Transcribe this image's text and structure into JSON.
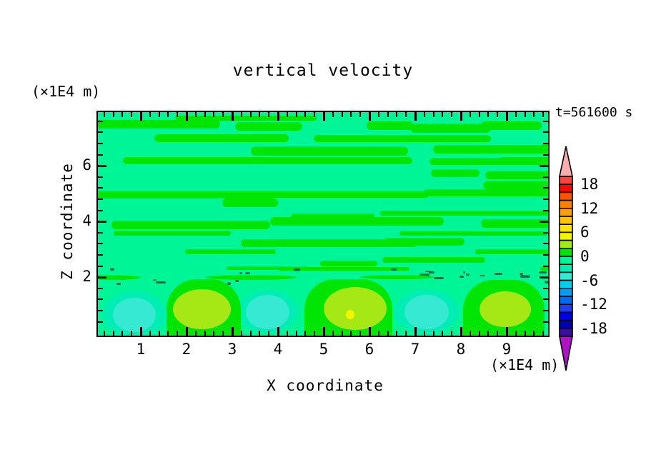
{
  "title": "vertical velocity",
  "time_label": "t=561600 s",
  "axes": {
    "x": {
      "label": "X coordinate",
      "unit_label": "(×1E4 m)",
      "major_ticks": [
        1,
        2,
        3,
        4,
        5,
        6,
        7,
        8,
        9
      ],
      "minor_step": 0.2,
      "min": 0.0625,
      "max": 9.9
    },
    "z": {
      "label": "Z coordinate",
      "unit_label": "(×1E4 m)",
      "major_ticks": [
        2,
        4,
        6
      ],
      "minor_step": 0.4,
      "min": -0.1,
      "max": 7.93
    }
  },
  "colorbar": {
    "step": 2,
    "labels": [
      "18",
      "12",
      "6",
      "0",
      "-6",
      "-12",
      "-18"
    ],
    "label_values": [
      18,
      12,
      6,
      0,
      -6,
      -12,
      -18
    ],
    "label_boundary_indices": [
      1,
      4,
      7,
      10,
      13,
      16,
      19
    ],
    "over_color": "#F8AEB0",
    "under_color": "#AE14C4",
    "segments": [
      {
        "range": [
          18,
          20
        ],
        "color": "#FA4440"
      },
      {
        "range": [
          16,
          18
        ],
        "color": "#F40A00"
      },
      {
        "range": [
          14,
          16
        ],
        "color": "#FA5500"
      },
      {
        "range": [
          12,
          14
        ],
        "color": "#FB8200"
      },
      {
        "range": [
          10,
          12
        ],
        "color": "#FDA000"
      },
      {
        "range": [
          8,
          10
        ],
        "color": "#FFC300"
      },
      {
        "range": [
          6,
          8
        ],
        "color": "#FFE300"
      },
      {
        "range": [
          4,
          6
        ],
        "color": "#F2F500"
      },
      {
        "range": [
          2,
          4
        ],
        "color": "#A6E816"
      },
      {
        "range": [
          0,
          2
        ],
        "color": "#00E504"
      },
      {
        "range": [
          -2,
          0
        ],
        "color": "#00F596"
      },
      {
        "range": [
          -4,
          -2
        ],
        "color": "#00EDB4"
      },
      {
        "range": [
          -6,
          -4
        ],
        "color": "#36E9D2"
      },
      {
        "range": [
          -8,
          -6
        ],
        "color": "#00CFF0"
      },
      {
        "range": [
          -10,
          -8
        ],
        "color": "#009CF5"
      },
      {
        "range": [
          -12,
          -10
        ],
        "color": "#006BF0"
      },
      {
        "range": [
          -14,
          -12
        ],
        "color": "#1E3CF2"
      },
      {
        "range": [
          -16,
          -14
        ],
        "color": "#0000E6"
      },
      {
        "range": [
          -18,
          -16
        ],
        "color": "#0000AC"
      },
      {
        "range": [
          -20,
          -18
        ],
        "color": "#3A0CA0"
      }
    ]
  },
  "chart_data": {
    "type": "heatmap",
    "field": "vertical velocity",
    "title": "vertical velocity",
    "xlabel": "X coordinate",
    "ylabel": "Z coordinate",
    "x_range": [
      0.0625,
      9.9
    ],
    "z_range": [
      -0.1,
      7.93
    ],
    "time_annotation": "t=561600 s",
    "background_level": {
      "range": [
        -2,
        0
      ],
      "color": "#00F596"
    },
    "feature_colors": {
      "halo": "#00EDB4",
      "patch": "#36E9D2",
      "cell": "#00E504",
      "blob": "#A6E816",
      "dot": "#F2F500",
      "streak-link": "#00E504",
      "streak": "#00E504",
      "speck": "#007748"
    },
    "streak_band": {
      "description": "wavy horizontal streaks of 0..2 level over -2..0 background between z=2 and z=7.9",
      "seed": 9,
      "coverage": 0.57,
      "z_top": 7.93,
      "z_bottom": 2.05,
      "speck_count": 26
    },
    "features": [
      {
        "type": "halo",
        "x": 0.86,
        "z": 0.67,
        "rx": 0.69,
        "rz": 0.85,
        "level": "-4..-2"
      },
      {
        "type": "halo",
        "x": 3.77,
        "z": 0.77,
        "rx": 0.66,
        "rz": 0.77,
        "level": "-4..-2"
      },
      {
        "type": "halo",
        "x": 7.25,
        "z": 0.77,
        "rx": 0.7,
        "rz": 0.79,
        "level": "-4..-2"
      },
      {
        "type": "cell",
        "x0": 1.56,
        "x1": 3.19,
        "ztop": 1.92,
        "level": "0..2"
      },
      {
        "type": "cell",
        "x0": 4.58,
        "x1": 6.5,
        "ztop": 1.92,
        "level": "0..2"
      },
      {
        "type": "cell",
        "x0": 8.05,
        "x1": 9.83,
        "ztop": 1.9,
        "level": "0..2"
      },
      {
        "type": "streak-link",
        "x": 0.3,
        "z": 2.0,
        "rx": 0.7,
        "rz": 0.09,
        "level": "0..2"
      },
      {
        "type": "streak-link",
        "x": 3.4,
        "z": 1.98,
        "rx": 1.0,
        "rz": 0.09,
        "level": "0..2"
      },
      {
        "type": "streak-link",
        "x": 6.6,
        "z": 2.0,
        "rx": 0.8,
        "rz": 0.08,
        "level": "0..2"
      },
      {
        "type": "patch",
        "x": 0.86,
        "z": 0.64,
        "rx": 0.47,
        "rz": 0.62,
        "level": "-6..-4"
      },
      {
        "type": "patch",
        "x": 3.77,
        "z": 0.75,
        "rx": 0.48,
        "rz": 0.62,
        "level": "-6..-4"
      },
      {
        "type": "patch",
        "x": 7.25,
        "z": 0.75,
        "rx": 0.48,
        "rz": 0.62,
        "level": "-6..-4"
      },
      {
        "type": "blob",
        "x": 2.34,
        "z": 0.85,
        "rx": 0.63,
        "rz": 0.72,
        "level": "2..4"
      },
      {
        "type": "blob",
        "x": 5.69,
        "z": 0.87,
        "rx": 0.69,
        "rz": 0.77,
        "level": "2..4"
      },
      {
        "type": "blob",
        "x": 8.97,
        "z": 0.85,
        "rx": 0.56,
        "rz": 0.64,
        "level": "2..4"
      },
      {
        "type": "dot",
        "x": 5.58,
        "z": 0.66,
        "rx": 0.09,
        "rz": 0.17,
        "level": "4..6"
      }
    ]
  }
}
